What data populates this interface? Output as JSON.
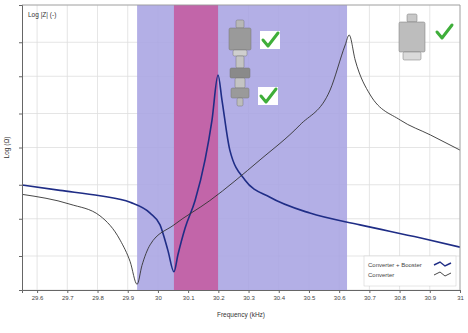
{
  "chart_data": {
    "type": "line",
    "title": "Log |Z| (-)",
    "x_label": "Frequency (kHz)",
    "y_label": "Log (Ω)",
    "log": "y",
    "grid": true,
    "legend": "lower right",
    "tick_labels": "x",
    "xlim": [
      29.55,
      31.0
    ],
    "xticks": [
      29.6,
      29.7,
      29.8,
      29.9,
      30,
      30.1,
      30.2,
      30.3,
      30.4,
      30.5,
      30.6,
      30.7,
      30.8,
      30.9,
      31
    ],
    "ylim": [
      1,
      10000
    ],
    "yticks": [
      1,
      3,
      10,
      30,
      100,
      300,
      1000,
      3000,
      10000
    ],
    "bands": [
      {
        "from": 29.931,
        "to": 30.626,
        "color": "#a9a4e2"
      },
      {
        "from": 30.053,
        "to": 30.199,
        "color": "#c45ba0"
      }
    ],
    "series": [
      {
        "name": "Converter + Booster",
        "color": "#1f2d86",
        "x": [
          29.55,
          29.676,
          29.808,
          29.908,
          29.974,
          30.007,
          30.033,
          30.053,
          30.066,
          30.09,
          30.123,
          30.156,
          30.179,
          30.199,
          30.212,
          30.238,
          30.288,
          30.371,
          30.503,
          30.669,
          30.867,
          31.0
        ],
        "values": [
          29.8,
          25,
          21,
          17,
          12,
          8.2,
          3.6,
          1.8,
          3.1,
          7.4,
          18,
          67,
          243,
          1040,
          464,
          92,
          35,
          20,
          12,
          8.2,
          5.4,
          4.0
        ]
      },
      {
        "name": "Converter",
        "color": "#333333",
        "x": [
          29.55,
          29.709,
          29.808,
          29.875,
          29.908,
          29.931,
          29.947,
          29.974,
          30.053,
          30.172,
          30.338,
          30.47,
          30.57,
          30.62,
          30.633,
          30.653,
          30.703,
          30.802,
          30.902,
          31.0
        ],
        "values": [
          22,
          16,
          11,
          5.0,
          2.5,
          1.2,
          2.2,
          4.3,
          8.2,
          18,
          67,
          207,
          641,
          2750,
          3790,
          1690,
          546,
          243,
          150,
          92
        ]
      }
    ]
  }
}
